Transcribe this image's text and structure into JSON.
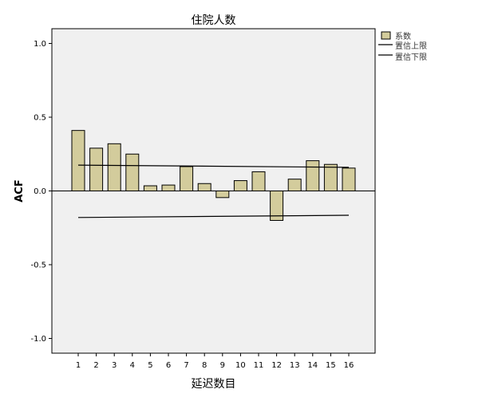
{
  "chart_data": {
    "type": "bar",
    "title": "住院人数",
    "xlabel": "延迟数目",
    "ylabel": "ACF",
    "categories": [
      "1",
      "2",
      "3",
      "4",
      "5",
      "6",
      "7",
      "8",
      "9",
      "10",
      "11",
      "12",
      "13",
      "14",
      "15",
      "16"
    ],
    "series": [
      {
        "name": "系数",
        "values": [
          0.41,
          0.29,
          0.32,
          0.25,
          0.035,
          0.04,
          0.165,
          0.05,
          -0.045,
          0.07,
          0.13,
          -0.2,
          0.08,
          0.205,
          0.18,
          0.155
        ]
      }
    ],
    "upper_limit": {
      "name": "置信上限",
      "start": 0.175,
      "end": 0.16
    },
    "lower_limit": {
      "name": "置信下限",
      "start": -0.18,
      "end": -0.165
    },
    "ylim": [
      -1.1,
      1.1
    ],
    "yticks": [
      -1.0,
      -0.5,
      0.0,
      0.5,
      1.0
    ],
    "ytick_labels": [
      "-1.0",
      "-0.5",
      "0.0",
      "0.5",
      "1.0"
    ],
    "grid": false,
    "legend_position": "top-right",
    "colors": {
      "bar_fill": "#d3cc9c",
      "bar_stroke": "#000000",
      "plot_background": "#f0f0f0",
      "line": "#000000"
    }
  }
}
